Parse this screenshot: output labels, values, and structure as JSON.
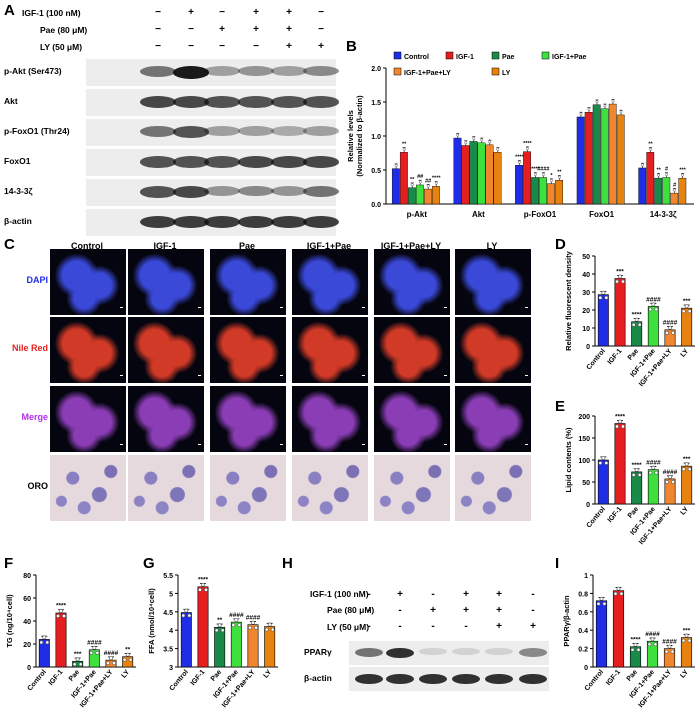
{
  "panels": {
    "A": "A",
    "B": "B",
    "C": "C",
    "D": "D",
    "E": "E",
    "F": "F",
    "G": "G",
    "H": "H",
    "I": "I"
  },
  "treatments": {
    "igf": "IGF-1 (100 nM)",
    "pae": "Pae (80 μM)",
    "ly": "LY (50 μM)",
    "igf_row": [
      "−",
      "+",
      "−",
      "+",
      "+",
      "−"
    ],
    "pae_row": [
      "−",
      "−",
      "+",
      "+",
      "+",
      "−"
    ],
    "ly_row": [
      "−",
      "−",
      "−",
      "−",
      "+",
      "+"
    ]
  },
  "blots_a": [
    "p-Akt (Ser473)",
    "Akt",
    "p-FoxO1 (Thr24)",
    "FoxO1",
    "14-3-3ζ",
    "β-actin"
  ],
  "legend_b": [
    "Control",
    "IGF-1",
    "Pae",
    "IGF-1+Pae",
    "IGF-1+Pae+LY",
    "LY"
  ],
  "colors": {
    "control": "#1f2ee6",
    "igf1": "#e51f1f",
    "pae": "#1a8a4a",
    "igf_pae": "#3de03d",
    "igf_pae_ly": "#f0872f",
    "ly": "#e8820e"
  },
  "microscopy": {
    "columns": [
      "Control",
      "IGF-1",
      "Pae",
      "IGF-1+Pae",
      "IGF-1+Pae+LY",
      "LY"
    ],
    "rows": [
      "DAPI",
      "Nile Red",
      "Merge",
      "ORO"
    ]
  },
  "blots_h": {
    "igf_row": [
      "-",
      "+",
      "-",
      "+",
      "+",
      "-"
    ],
    "pae_row": [
      "-",
      "-",
      "+",
      "+",
      "+",
      "-"
    ],
    "ly_row": [
      "-",
      "-",
      "-",
      "-",
      "+",
      "+"
    ],
    "names": [
      "PPARγ",
      "β-actin"
    ]
  },
  "chart_data": [
    {
      "panel": "B",
      "type": "bar",
      "categories": [
        "p-Akt",
        "Akt",
        "p-FoxO1",
        "FoxO1",
        "14-3-3ζ"
      ],
      "ylabel": "Relative levels\n(Normalized to β-actin)",
      "ylim": [
        0,
        2.0
      ],
      "yticks": [
        0.0,
        0.5,
        1.0,
        1.5,
        2.0
      ],
      "series": [
        {
          "name": "Control",
          "values": [
            0.52,
            0.97,
            0.57,
            1.28,
            0.53
          ]
        },
        {
          "name": "IGF-1",
          "values": [
            0.76,
            0.86,
            0.77,
            1.35,
            0.76
          ]
        },
        {
          "name": "Pae",
          "values": [
            0.24,
            0.92,
            0.39,
            1.46,
            0.38
          ]
        },
        {
          "name": "IGF-1+Pae",
          "values": [
            0.28,
            0.9,
            0.39,
            1.4,
            0.39
          ]
        },
        {
          "name": "IGF-1+Pae+LY",
          "values": [
            0.22,
            0.87,
            0.3,
            1.47,
            0.16
          ]
        },
        {
          "name": "LY",
          "values": [
            0.26,
            0.76,
            0.35,
            1.31,
            0.38
          ]
        }
      ],
      "annotations": [
        [
          "",
          "**",
          "**",
          "##",
          "##",
          "****"
        ],
        [
          "",
          "",
          "",
          "",
          "",
          ""
        ],
        [
          "****",
          "****",
          "****",
          "####",
          "*",
          "**"
        ],
        [
          "",
          "",
          "",
          "",
          "",
          ""
        ],
        [
          "",
          "**",
          "**",
          "#",
          "#",
          "***"
        ]
      ]
    },
    {
      "panel": "D",
      "type": "bar",
      "categories": [
        "Control",
        "IGF-1",
        "Pae",
        "IGF-1+Pae",
        "IGF-1+Pae+LY",
        "LY"
      ],
      "ylabel": "Relative fluorescent density",
      "ylim": [
        0,
        50
      ],
      "yticks": [
        0,
        10,
        20,
        30,
        40,
        50
      ],
      "values": [
        28.5,
        37.5,
        13.5,
        22.0,
        9.0,
        21.0
      ],
      "annotations": [
        "",
        "***",
        "****",
        "####",
        "####",
        "***"
      ]
    },
    {
      "panel": "E",
      "type": "bar",
      "categories": [
        "Control",
        "IGF-1",
        "Pae",
        "IGF-1+Pae",
        "IGF-1+Pae+LY",
        "LY"
      ],
      "ylabel": "Lipid contents (%)",
      "ylim": [
        0,
        200
      ],
      "yticks": [
        0,
        50,
        100,
        150,
        200
      ],
      "values": [
        100,
        183,
        73,
        78,
        57,
        86
      ],
      "annotations": [
        "",
        "****",
        "****",
        "####",
        "####",
        "***"
      ]
    },
    {
      "panel": "F",
      "type": "bar",
      "categories": [
        "Control",
        "IGF-1",
        "Pae",
        "IGF-1+Pae",
        "IGF-1+Pae+LY",
        "LY"
      ],
      "ylabel": "TG (ng/10⁴cell)",
      "ylim": [
        0,
        80
      ],
      "yticks": [
        0,
        20,
        40,
        60,
        80
      ],
      "values": [
        24,
        47,
        5,
        15,
        6,
        9
      ],
      "annotations": [
        "",
        "****",
        "***",
        "####",
        "####",
        "**"
      ]
    },
    {
      "panel": "G",
      "type": "bar",
      "categories": [
        "Control",
        "IGF-1",
        "Pae",
        "IGF-1+Pae",
        "IGF-1+Pae+LY",
        "LY"
      ],
      "ylabel": "FFA (nmol/10⁴cell)",
      "ylim": [
        3.0,
        5.5
      ],
      "yticks": [
        3.0,
        3.5,
        4.0,
        4.5,
        5.0,
        5.5
      ],
      "values": [
        4.48,
        5.18,
        4.08,
        4.22,
        4.15,
        4.1
      ],
      "annotations": [
        "",
        "****",
        "**",
        "####",
        "####",
        ""
      ]
    },
    {
      "panel": "I",
      "type": "bar",
      "categories": [
        "Control",
        "IGF-1",
        "Pae",
        "IGF-1+Pae",
        "IGF-1+Pae+LY",
        "LY"
      ],
      "ylabel": "PPARγ/β-actin",
      "ylim": [
        0,
        1.0
      ],
      "yticks": [
        0.0,
        0.2,
        0.4,
        0.6,
        0.8,
        1.0
      ],
      "values": [
        0.72,
        0.83,
        0.22,
        0.28,
        0.2,
        0.32
      ],
      "annotations": [
        "",
        "",
        "****",
        "####",
        "####",
        "***"
      ]
    }
  ]
}
